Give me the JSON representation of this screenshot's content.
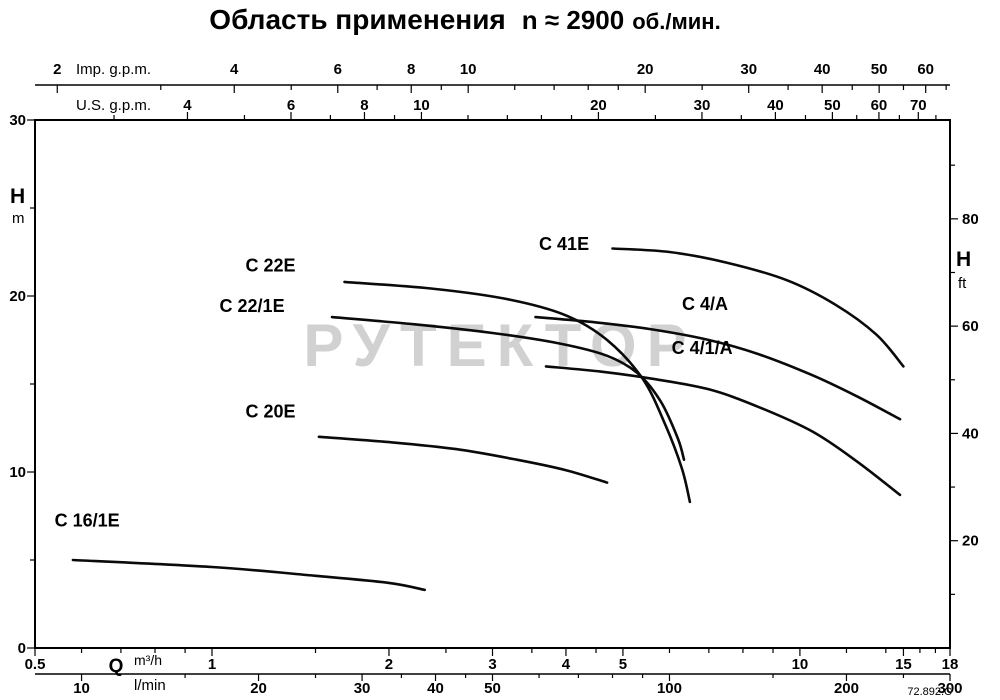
{
  "title": {
    "main": "Область применения",
    "speed": "n ≈ 2900",
    "units": "об./мин."
  },
  "watermark": "РУТЕКТОР",
  "ref_code": "72.892.C",
  "chart_data": {
    "type": "line",
    "x_scale": "log",
    "x_unit": "m3/h",
    "x_range": [
      0.5,
      18
    ],
    "y_unit": "m",
    "y_range": [
      0,
      30
    ],
    "grid": false,
    "axes": {
      "imp_gpm": {
        "label": "Imp. g.p.m.",
        "factor_to_m3h": 0.27276,
        "major": [
          2,
          4,
          6,
          8,
          10,
          20,
          30,
          40,
          50,
          60
        ],
        "minor": [
          3,
          5,
          7,
          9,
          12,
          14,
          16,
          18,
          25,
          35,
          45,
          55,
          65
        ]
      },
      "us_gpm": {
        "label": "U.S. g.p.m.",
        "factor_to_m3h": 0.22712,
        "major": [
          4,
          6,
          8,
          10,
          20,
          30,
          40,
          50,
          60,
          70
        ],
        "minor": [
          3,
          5,
          7,
          9,
          12,
          14,
          16,
          18,
          25,
          35,
          45,
          55,
          65,
          75
        ]
      },
      "q_m3h": {
        "label_q": "Q",
        "label_unit": "m³/h",
        "major": [
          0.5,
          1,
          2,
          3,
          4,
          5,
          10,
          15,
          18
        ],
        "minor": [
          0.6,
          0.7,
          0.8,
          0.9,
          1.5,
          2.5,
          3.5,
          4.5,
          6,
          7,
          8,
          9,
          12,
          14,
          16,
          17
        ]
      },
      "q_lmin": {
        "label_unit": "l/min",
        "factor_to_m3h": 0.06,
        "major": [
          10,
          20,
          30,
          40,
          50,
          100,
          200,
          300
        ],
        "minor": [
          15,
          25,
          35,
          45,
          60,
          70,
          80,
          90,
          150,
          250
        ]
      },
      "h_m": {
        "label_h": "H",
        "label_unit": "m",
        "major": [
          0,
          10,
          20,
          30
        ],
        "minor": [
          5,
          15,
          25
        ]
      },
      "h_ft": {
        "label_h": "H",
        "label_unit": "ft",
        "factor_to_m": 0.3048,
        "major": [
          20,
          40,
          60,
          80
        ],
        "minor": [
          10,
          30,
          50,
          70,
          90
        ]
      }
    },
    "series": [
      {
        "name": "C 16/1E",
        "label_anchor": {
          "q": 0.54,
          "h": 6.9
        },
        "points": [
          [
            0.58,
            5.0
          ],
          [
            1.0,
            4.6
          ],
          [
            1.5,
            4.1
          ],
          [
            2.0,
            3.7
          ],
          [
            2.3,
            3.3
          ]
        ]
      },
      {
        "name": "C 20E",
        "label_anchor": {
          "q": 1.14,
          "h": 13.1
        },
        "points": [
          [
            1.52,
            12.0
          ],
          [
            2.0,
            11.7
          ],
          [
            2.6,
            11.3
          ],
          [
            3.3,
            10.7
          ],
          [
            4.0,
            10.1
          ],
          [
            4.7,
            9.4
          ]
        ]
      },
      {
        "name": "C 22/1E",
        "label_anchor": {
          "q": 1.03,
          "h": 19.1
        },
        "points": [
          [
            1.6,
            18.8
          ],
          [
            2.2,
            18.4
          ],
          [
            3.0,
            17.9
          ],
          [
            3.9,
            17.3
          ],
          [
            4.7,
            16.6
          ],
          [
            5.3,
            15.6
          ],
          [
            5.8,
            14.0
          ],
          [
            6.2,
            11.9
          ],
          [
            6.35,
            10.7
          ]
        ]
      },
      {
        "name": "C 22E",
        "label_anchor": {
          "q": 1.14,
          "h": 21.4
        },
        "points": [
          [
            1.68,
            20.8
          ],
          [
            2.4,
            20.4
          ],
          [
            3.2,
            19.8
          ],
          [
            4.0,
            18.9
          ],
          [
            4.7,
            17.5
          ],
          [
            5.4,
            15.3
          ],
          [
            5.9,
            12.7
          ],
          [
            6.3,
            10.2
          ],
          [
            6.5,
            8.3
          ]
        ]
      },
      {
        "name": "C 41E",
        "label_anchor": {
          "q": 3.6,
          "h": 22.6
        },
        "points": [
          [
            4.8,
            22.7
          ],
          [
            6.0,
            22.5
          ],
          [
            7.5,
            21.9
          ],
          [
            9.5,
            20.9
          ],
          [
            11.5,
            19.5
          ],
          [
            13.5,
            17.8
          ],
          [
            15.0,
            16.0
          ]
        ]
      },
      {
        "name": "C 4/A",
        "label_anchor": {
          "q": 6.3,
          "h": 19.2
        },
        "points": [
          [
            3.55,
            18.8
          ],
          [
            4.5,
            18.5
          ],
          [
            5.6,
            18.1
          ],
          [
            7.0,
            17.5
          ],
          [
            8.5,
            16.7
          ],
          [
            10.5,
            15.5
          ],
          [
            12.5,
            14.3
          ],
          [
            14.8,
            13.0
          ]
        ]
      },
      {
        "name": "C 4/1/A",
        "label_anchor": {
          "q": 6.05,
          "h": 16.7
        },
        "points": [
          [
            3.7,
            16.0
          ],
          [
            4.6,
            15.7
          ],
          [
            5.6,
            15.3
          ],
          [
            7.0,
            14.7
          ],
          [
            8.5,
            13.7
          ],
          [
            10.5,
            12.3
          ],
          [
            12.5,
            10.6
          ],
          [
            14.8,
            8.7
          ]
        ]
      }
    ]
  }
}
